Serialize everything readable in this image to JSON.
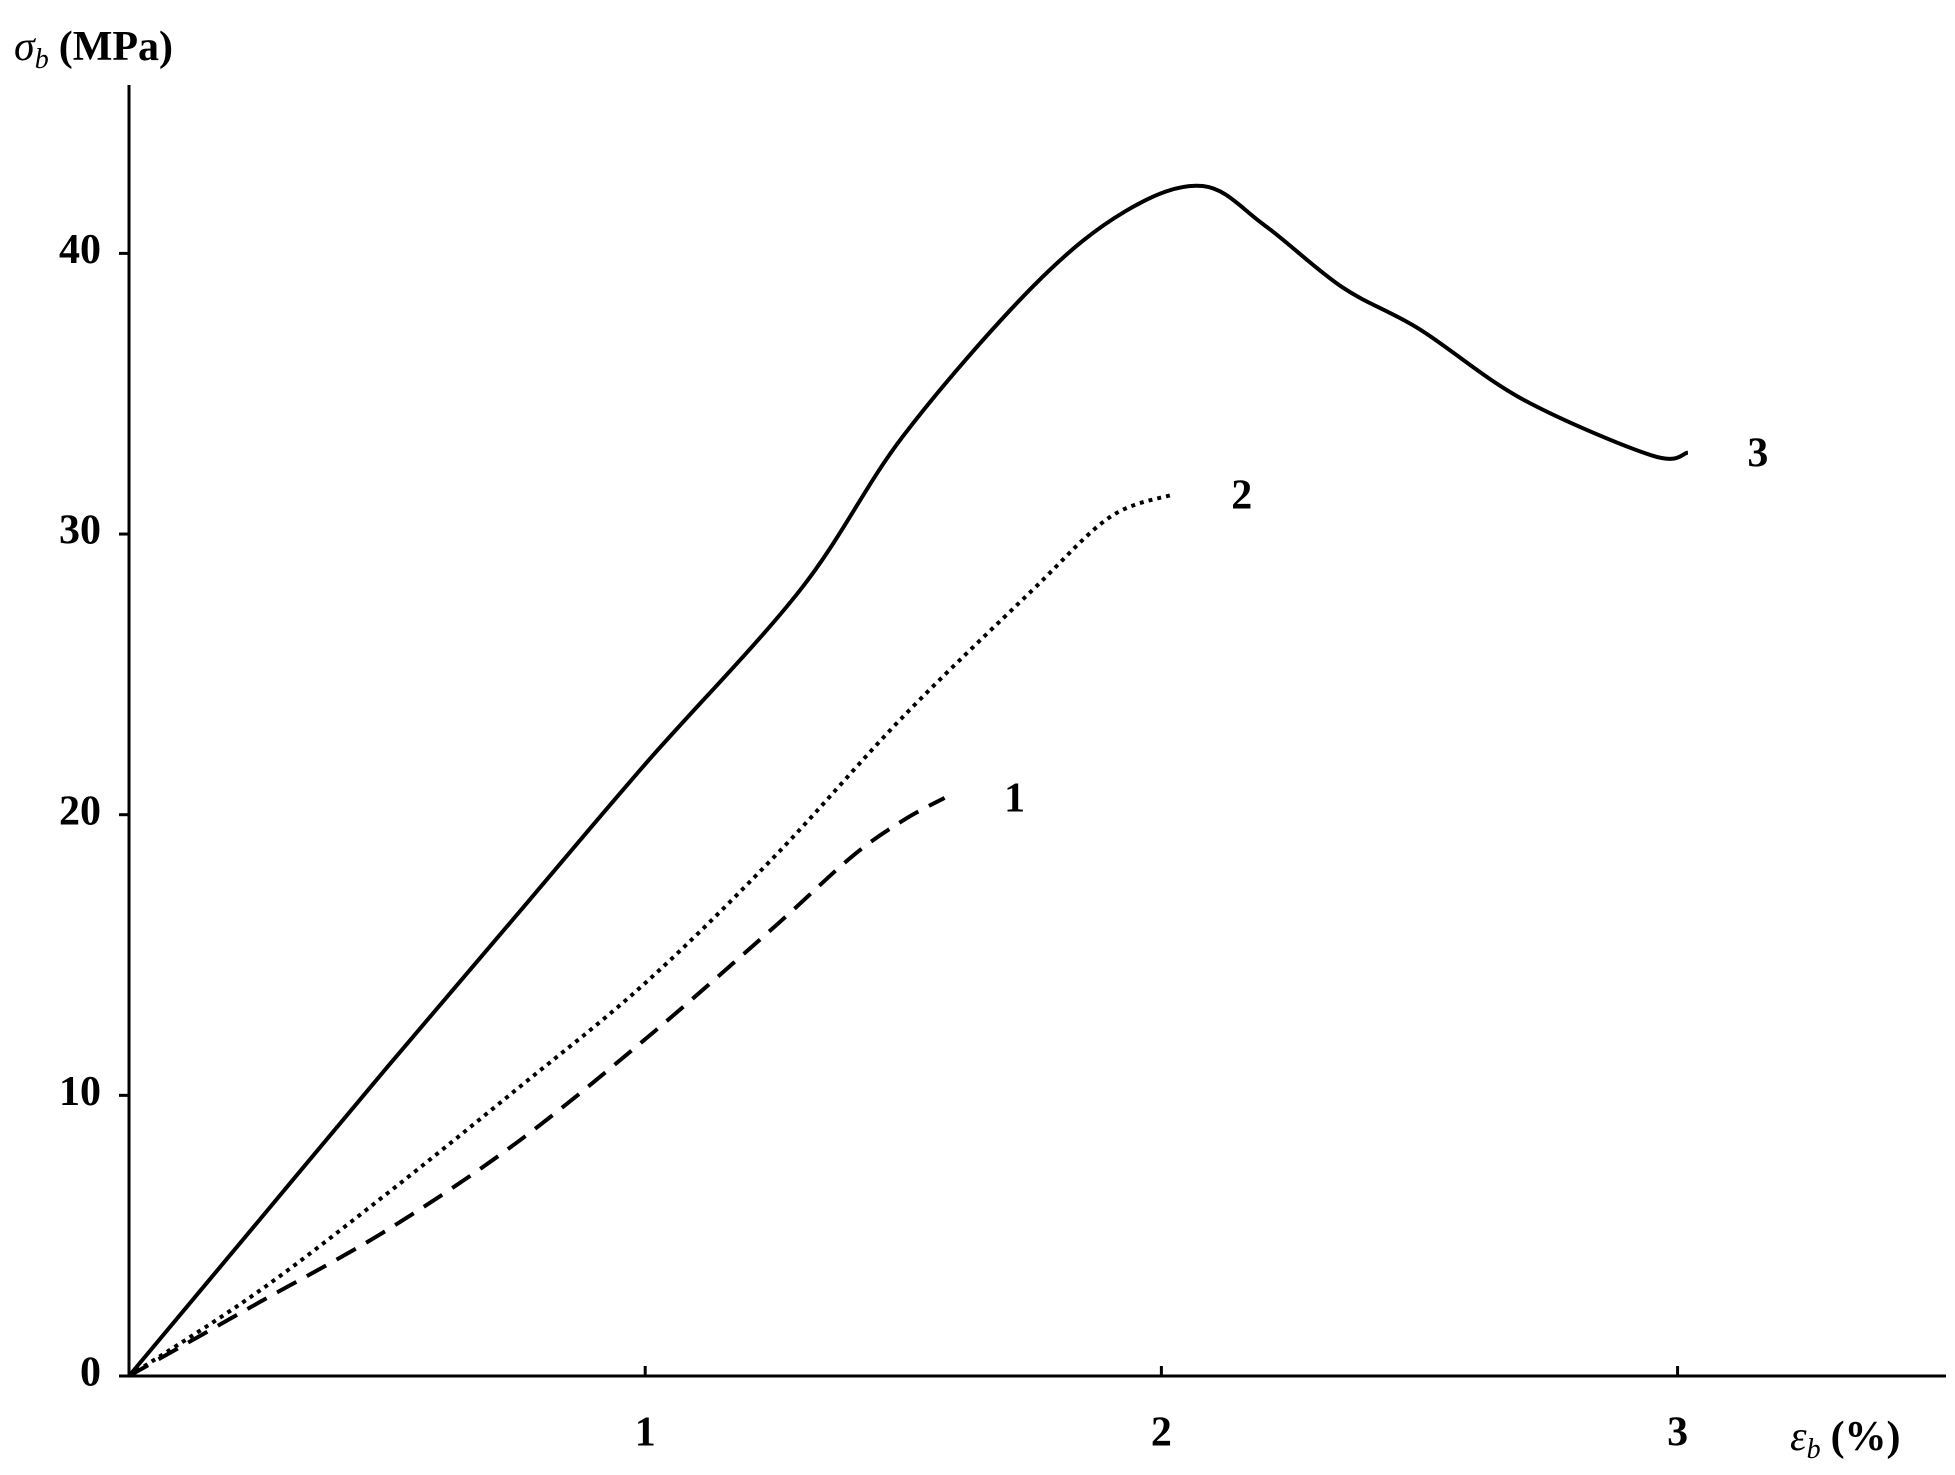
{
  "chart_data": {
    "type": "line",
    "ylabel_symbol": "σ",
    "ylabel_subscript": "b",
    "ylabel_unit": "(MPa)",
    "xlabel_symbol": "ε",
    "xlabel_subscript": "b",
    "xlabel_unit": "(%)",
    "xlim": [
      0,
      3.52
    ],
    "ylim": [
      0,
      46
    ],
    "xticks": [
      1,
      2,
      3
    ],
    "yticks": [
      0,
      10,
      20,
      30,
      40
    ],
    "grid": false,
    "series": [
      {
        "name": "1",
        "color": "#000000",
        "dash": "dashed",
        "x": [
          0,
          0.25,
          0.5,
          0.75,
          1,
          1.25,
          1.4,
          1.5,
          1.58
        ],
        "values": [
          0,
          2.6,
          5.2,
          8.3,
          12,
          16,
          18.5,
          19.8,
          20.6
        ]
      },
      {
        "name": "2",
        "color": "#000000",
        "dash": "dotted",
        "x": [
          0,
          0.25,
          0.5,
          0.75,
          1,
          1.25,
          1.5,
          1.75,
          1.9,
          2.02
        ],
        "values": [
          0,
          3,
          6.5,
          10.2,
          14,
          18.5,
          23.5,
          28,
          30.6,
          31.4
        ]
      },
      {
        "name": "3",
        "color": "#000000",
        "dash": "solid",
        "x": [
          0,
          0.25,
          0.5,
          0.75,
          1,
          1.3,
          1.5,
          1.75,
          1.93,
          2.08,
          2.2,
          2.35,
          2.5,
          2.7,
          2.95,
          3.02
        ],
        "values": [
          0,
          5.5,
          11,
          16.4,
          21.8,
          28,
          33.5,
          38.8,
          41.5,
          42.4,
          41,
          38.8,
          37.3,
          34.8,
          32.8,
          32.9
        ]
      }
    ]
  }
}
